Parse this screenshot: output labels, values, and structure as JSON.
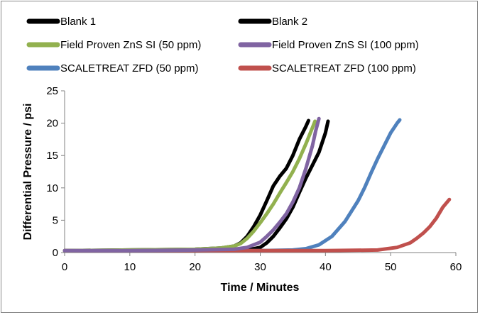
{
  "chart_data": {
    "type": "line",
    "xlabel": "Time / Minutes",
    "ylabel": "Differential Pressure / psi",
    "xlim": [
      0,
      60
    ],
    "ylim": [
      0,
      25
    ],
    "x_ticks": [
      0,
      10,
      20,
      30,
      40,
      50,
      60
    ],
    "y_ticks": [
      0,
      5,
      10,
      15,
      20,
      25
    ],
    "grid": false,
    "legend_position": "top",
    "series": [
      {
        "name": "Blank 1",
        "color": "#000000",
        "x": [
          0,
          10,
          20,
          24,
          26,
          27,
          28,
          29,
          30,
          31,
          32,
          33,
          34,
          35,
          36,
          37,
          37.4
        ],
        "y": [
          0.3,
          0.4,
          0.5,
          0.7,
          1.0,
          1.5,
          2.5,
          4.0,
          5.8,
          8.0,
          10.3,
          11.8,
          13.0,
          15.0,
          17.5,
          19.5,
          20.4
        ]
      },
      {
        "name": "Blank 2",
        "color": "#000000",
        "x": [
          0,
          10,
          20,
          28,
          30,
          31,
          32,
          33,
          34,
          35,
          36,
          37,
          38,
          39,
          40,
          40.4
        ],
        "y": [
          0.3,
          0.3,
          0.3,
          0.4,
          0.8,
          1.5,
          2.5,
          3.8,
          5.2,
          7.0,
          9.3,
          11.5,
          13.5,
          15.5,
          18.5,
          20.3
        ]
      },
      {
        "name": "Field Proven ZnS SI (50 ppm)",
        "color": "#92B14F",
        "x": [
          0,
          10,
          20,
          24,
          26,
          27,
          28,
          29,
          30,
          31,
          32,
          33,
          34,
          35,
          36,
          37,
          38,
          38.4
        ],
        "y": [
          0.3,
          0.4,
          0.5,
          0.7,
          1.0,
          1.4,
          2.2,
          3.3,
          4.6,
          6.0,
          7.5,
          9.2,
          10.8,
          12.5,
          14.5,
          16.8,
          19.3,
          20.3
        ]
      },
      {
        "name": "Field Proven ZnS SI (100 ppm)",
        "color": "#8064A2",
        "x": [
          0,
          10,
          20,
          26,
          28,
          30,
          31,
          32,
          33,
          34,
          35,
          36,
          37,
          38,
          38.5,
          39
        ],
        "y": [
          0.3,
          0.3,
          0.4,
          0.5,
          0.8,
          1.6,
          2.5,
          3.5,
          4.7,
          6.0,
          7.8,
          10.0,
          13.0,
          16.5,
          18.8,
          20.7
        ]
      },
      {
        "name": "SCALETREAT ZFD (50 ppm)",
        "color": "#4F81BD",
        "x": [
          0,
          10,
          20,
          30,
          35,
          37,
          39,
          41,
          43,
          45,
          46,
          47,
          48,
          49,
          50,
          51,
          51.4
        ],
        "y": [
          0.3,
          0.3,
          0.3,
          0.3,
          0.4,
          0.6,
          1.2,
          2.5,
          4.8,
          8.0,
          10.0,
          12.3,
          14.5,
          16.5,
          18.5,
          20.0,
          20.5
        ]
      },
      {
        "name": "SCALETREAT ZFD (100 ppm)",
        "color": "#C0504D",
        "x": [
          0,
          10,
          20,
          30,
          40,
          48,
          51,
          53,
          54,
          55,
          56,
          57,
          58,
          59
        ],
        "y": [
          0.3,
          0.3,
          0.3,
          0.3,
          0.3,
          0.4,
          0.8,
          1.5,
          2.2,
          3.0,
          4.0,
          5.3,
          7.0,
          8.2
        ]
      }
    ]
  }
}
